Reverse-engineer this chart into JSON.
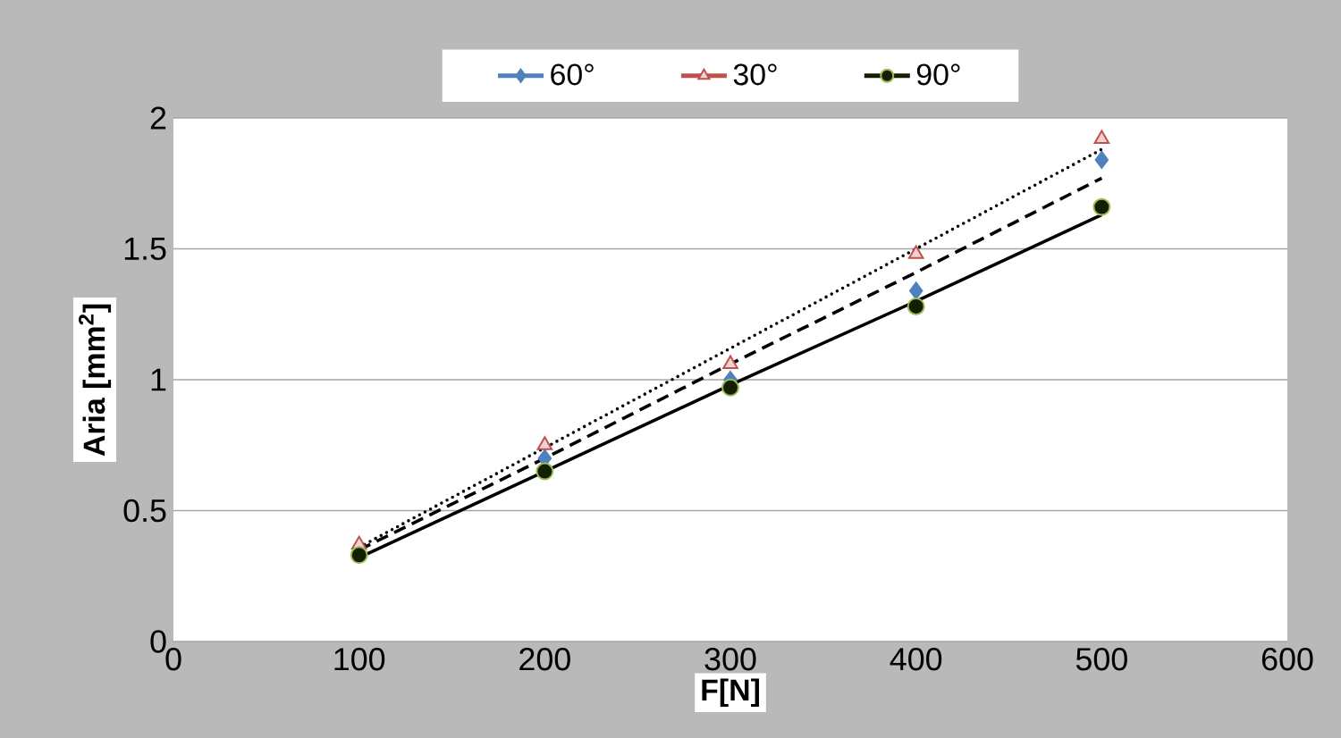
{
  "chart_data": {
    "type": "scatter",
    "xlabel": "F[N]",
    "ylabel": "Aria [mm$^{2}$]",
    "x": [
      100,
      200,
      300,
      400,
      500
    ],
    "xlim": [
      0,
      600
    ],
    "xticks": [
      0,
      100,
      200,
      300,
      400,
      500,
      600
    ],
    "ylim": [
      0,
      2
    ],
    "yticks": [
      0,
      0.5,
      1,
      1.5,
      2
    ],
    "grid": "y",
    "legend": "top",
    "series": [
      {
        "name": "60°",
        "color": "#4f81bd",
        "marker": "diamond",
        "values": [
          null,
          0.7,
          1.0,
          1.34,
          1.84
        ]
      },
      {
        "name": "30°",
        "color": "#c0504d",
        "marker": "triangle",
        "values": [
          0.37,
          0.75,
          1.06,
          1.48,
          1.92
        ]
      },
      {
        "name": "90°",
        "color": "#141e00",
        "marker": "circle",
        "values": [
          0.33,
          0.65,
          0.97,
          1.28,
          1.66
        ]
      },
      {
        "type": "line",
        "color": "#000000",
        "marker": "none",
        "line_style": "dotted",
        "values": [
          0.36,
          0.74,
          1.12,
          1.5,
          1.88
        ]
      },
      {
        "type": "line",
        "color": "#000000",
        "marker": "none",
        "line_style": "dashed",
        "values": [
          0.35,
          0.7,
          1.06,
          1.41,
          1.77
        ]
      },
      {
        "type": "line",
        "color": "#000000",
        "marker": "none",
        "line_style": "solid",
        "values": [
          0.32,
          0.65,
          0.98,
          1.3,
          1.63
        ]
      }
    ]
  }
}
